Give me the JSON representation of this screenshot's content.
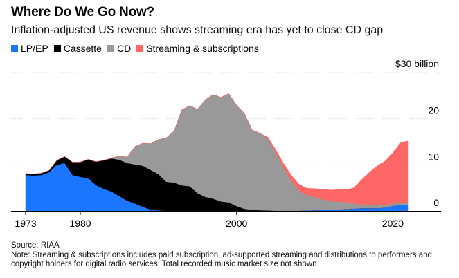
{
  "title": "Where Do We Go Now?",
  "subtitle": "Inflation-adjusted US revenue shows streaming era has yet to close CD gap",
  "unit_label": "$30 billion",
  "source": "Source: RIAA",
  "note": "Note: Streaming & subscriptions includes paid subscription, ad-supported streaming and distributions to performers and copyright holders for digital radio services. Total recorded music market size not shown.",
  "chart_data": {
    "type": "area",
    "stacked": true,
    "x": [
      1973,
      1974,
      1975,
      1976,
      1977,
      1978,
      1979,
      1980,
      1981,
      1982,
      1983,
      1984,
      1985,
      1986,
      1987,
      1988,
      1989,
      1990,
      1991,
      1992,
      1993,
      1994,
      1995,
      1996,
      1997,
      1998,
      1999,
      2000,
      2001,
      2002,
      2003,
      2004,
      2005,
      2006,
      2007,
      2008,
      2009,
      2010,
      2011,
      2012,
      2013,
      2014,
      2015,
      2016,
      2017,
      2018,
      2019,
      2020,
      2021,
      2022
    ],
    "series": [
      {
        "name": "LP/EP",
        "color": "#1a75ff",
        "values": [
          7.8,
          7.7,
          7.8,
          8.4,
          10.0,
          10.4,
          7.8,
          7.4,
          7.1,
          5.6,
          4.8,
          4.2,
          3.2,
          2.2,
          1.6,
          0.9,
          0.3,
          0.1,
          0.05,
          0.05,
          0.05,
          0.05,
          0.05,
          0.05,
          0.05,
          0.05,
          0.05,
          0.05,
          0.05,
          0.05,
          0.05,
          0.05,
          0.05,
          0.05,
          0.05,
          0.05,
          0.1,
          0.15,
          0.2,
          0.25,
          0.3,
          0.4,
          0.5,
          0.6,
          0.6,
          0.6,
          0.7,
          1.1,
          1.3,
          1.3
        ]
      },
      {
        "name": "Cassette",
        "color": "#000000",
        "values": [
          0.3,
          0.3,
          0.4,
          0.4,
          1.0,
          1.4,
          2.8,
          3.2,
          4.1,
          5.1,
          6.2,
          7.2,
          7.9,
          8.2,
          8.5,
          8.9,
          8.6,
          7.9,
          6.3,
          6.1,
          5.5,
          5.3,
          3.8,
          3.0,
          2.6,
          2.0,
          1.8,
          1.0,
          0.4,
          0.2,
          0.1,
          0.05,
          0,
          0,
          0,
          0,
          0,
          0,
          0,
          0,
          0,
          0,
          0,
          0,
          0,
          0,
          0,
          0,
          0,
          0
        ]
      },
      {
        "name": "CD",
        "color": "#999999",
        "values": [
          0,
          0,
          0,
          0,
          0,
          0,
          0,
          0,
          0,
          0,
          0,
          0.1,
          0.8,
          1.3,
          3.9,
          4.9,
          5.7,
          7.5,
          9.5,
          11.2,
          16.4,
          17.5,
          18.2,
          21.1,
          22.6,
          22.6,
          23.6,
          21.9,
          20.7,
          17.3,
          16.7,
          15.6,
          12.7,
          9.4,
          6.5,
          4.3,
          3.3,
          2.9,
          2.3,
          1.9,
          1.7,
          1.5,
          1.1,
          0.8,
          0.7,
          0.6,
          0.6,
          0.5,
          0.5,
          0.5
        ]
      },
      {
        "name": "Streaming & subscriptions",
        "color": "#ff6666",
        "values": [
          0,
          0,
          0,
          0,
          0,
          0,
          0,
          0,
          0,
          0,
          0,
          0,
          0,
          0,
          0,
          0,
          0,
          0,
          0,
          0,
          0,
          0,
          0,
          0,
          0,
          0,
          0,
          0,
          0,
          0,
          0,
          0.3,
          0.6,
          0.9,
          1.2,
          1.4,
          1.5,
          1.8,
          2.2,
          2.4,
          2.6,
          2.7,
          3.4,
          5.4,
          7.1,
          8.6,
          9.5,
          11.0,
          13.0,
          13.4
        ]
      }
    ],
    "x_ticks": [
      1973,
      1980,
      2000,
      2020
    ],
    "x_tick_labels": [
      "1973",
      "1980",
      "2000",
      "2020"
    ],
    "y_ticks": [
      0,
      10,
      20,
      30
    ],
    "y_tick_labels": [
      "0",
      "10",
      "20",
      "$30 billion"
    ],
    "ylim": [
      0,
      30
    ],
    "xlabel": "",
    "ylabel": "",
    "grid": "horizontal",
    "legend_placement": "top-left"
  }
}
